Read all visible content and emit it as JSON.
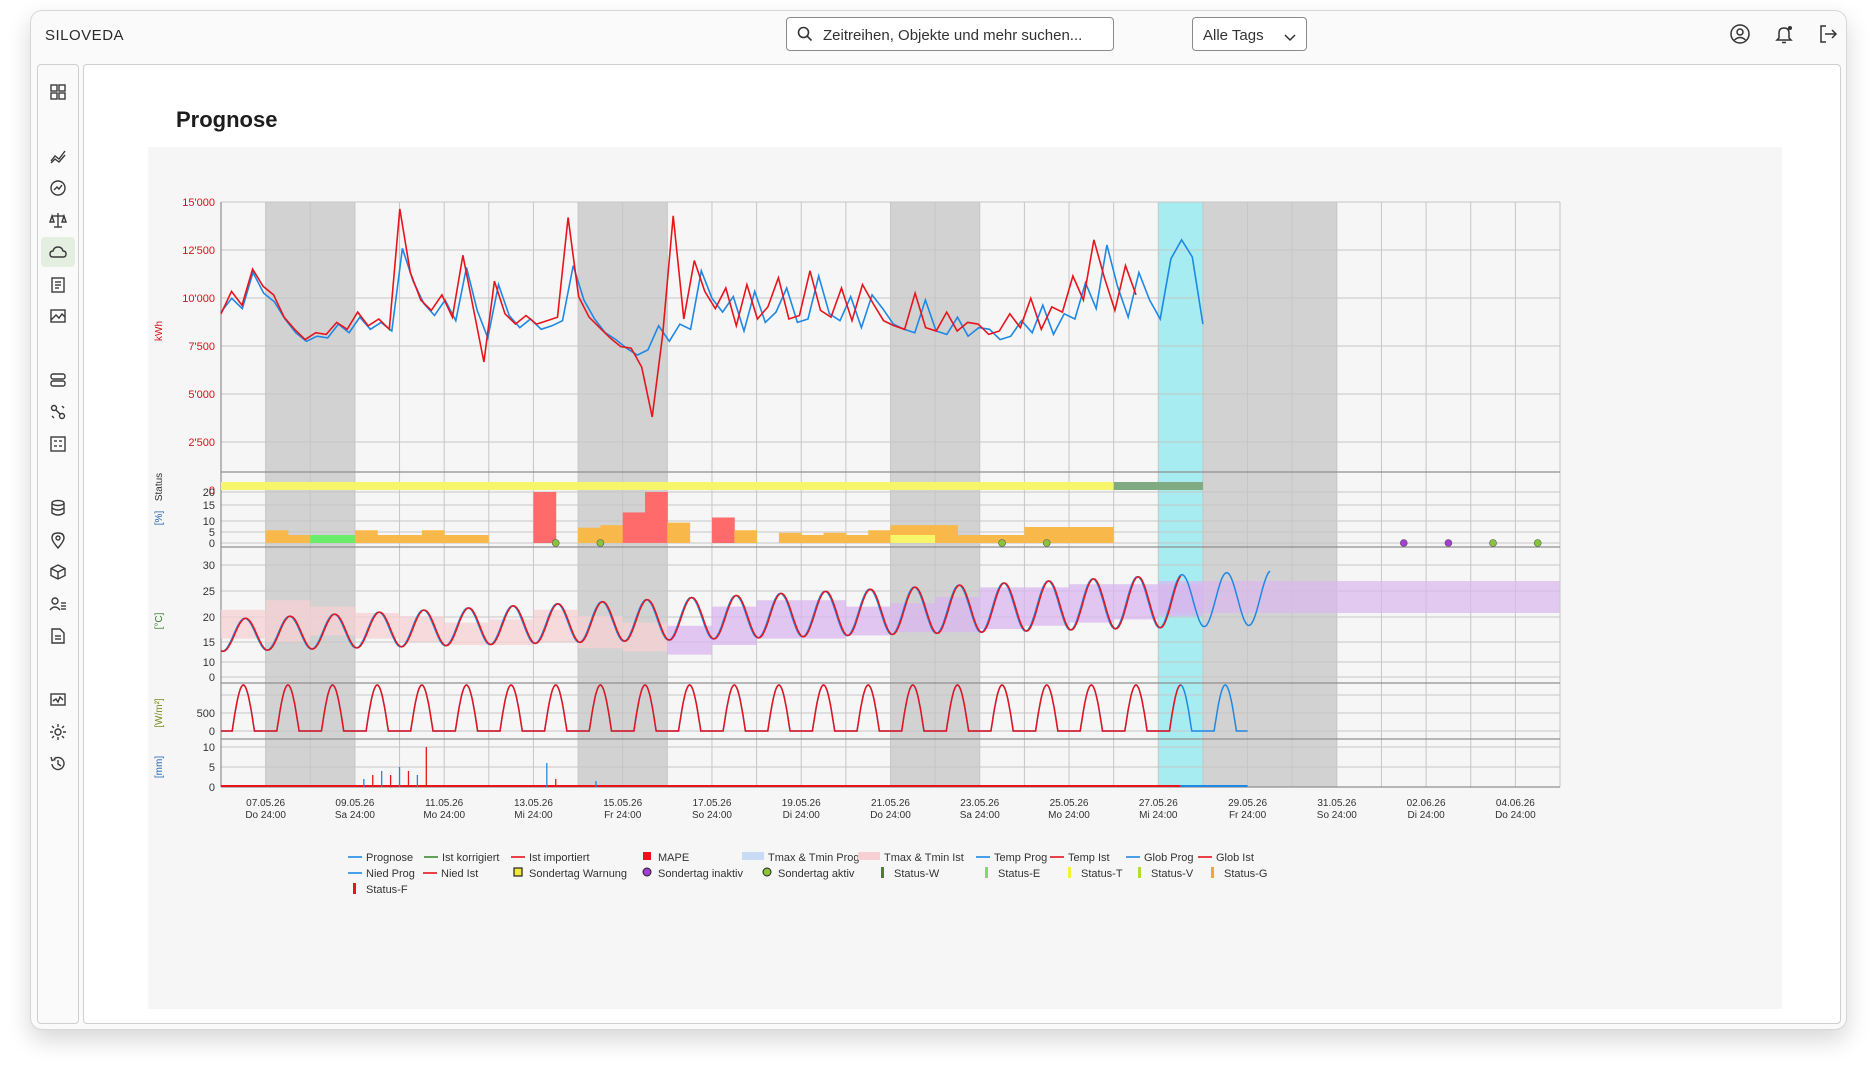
{
  "app": {
    "brand": "SILOVEDA"
  },
  "search": {
    "placeholder": "Zeitreihen, Objekte und mehr suchen..."
  },
  "tags": {
    "selected": "Alle Tags"
  },
  "page": {
    "title": "Prognose"
  },
  "sidebar": {
    "active_index": 4,
    "items": [
      "dashboard-icon",
      "analytics-icon",
      "gauge-icon",
      "balance-icon",
      "cloud-icon",
      "clipboard-icon",
      "landscape-icon",
      "stack-icon",
      "flow-icon",
      "calculator-icon",
      "database-icon",
      "location-icon",
      "cube-icon",
      "users-icon",
      "document-icon",
      "monitor-icon",
      "settings-icon",
      "history-icon"
    ]
  },
  "topbar_icons": [
    "user-icon",
    "bell-icon",
    "logout-icon"
  ],
  "colors": {
    "prognose": "#1e88e5",
    "ist": "#e8141c",
    "mape": "#ff6b6b",
    "weekend": "#d2d2d2",
    "today": "#a7ecf1",
    "status_yellow": "#f7f56a",
    "status_green": "#7faa82",
    "orange": "#f8b94a",
    "green_bar": "#69ec69",
    "tband_prog": "#c9dcf6",
    "tband_ist": "#f6d0d3",
    "purple": "#d8b6ee"
  },
  "chart_data": {
    "type": "line",
    "x_ticks": [
      {
        "date": "07.05.26",
        "day": "Do 24:00"
      },
      {
        "date": "09.05.26",
        "day": "Sa 24:00"
      },
      {
        "date": "11.05.26",
        "day": "Mo 24:00"
      },
      {
        "date": "13.05.26",
        "day": "Mi 24:00"
      },
      {
        "date": "15.05.26",
        "day": "Fr 24:00"
      },
      {
        "date": "17.05.26",
        "day": "So 24:00"
      },
      {
        "date": "19.05.26",
        "day": "Di 24:00"
      },
      {
        "date": "21.05.26",
        "day": "Do 24:00"
      },
      {
        "date": "23.05.26",
        "day": "Sa 24:00"
      },
      {
        "date": "25.05.26",
        "day": "Mo 24:00"
      },
      {
        "date": "27.05.26",
        "day": "Mi 24:00"
      },
      {
        "date": "29.05.26",
        "day": "Fr 24:00"
      },
      {
        "date": "31.05.26",
        "day": "So 24:00"
      },
      {
        "date": "02.06.26",
        "day": "Di 24:00"
      },
      {
        "date": "04.06.26",
        "day": "Do 24:00"
      }
    ],
    "weekend_day_ranges": [
      [
        1,
        3
      ],
      [
        8,
        10
      ],
      [
        15,
        17
      ],
      [
        22,
        24
      ]
    ],
    "today_day_range": [
      21,
      22
    ],
    "panels": [
      {
        "name": "energy",
        "ylabel": "kWh",
        "ticks": [
          "15'000",
          "12'500",
          "10'000",
          "7'500",
          "5'000",
          "2'500",
          "0"
        ],
        "ylim": [
          0,
          15000
        ],
        "series": [
          {
            "name": "Prognose",
            "values": [
              8600,
              9400,
              8800,
              10900,
              9700,
              9200,
              8200,
              7400,
              6900,
              7200,
              7100,
              7900,
              7400,
              8300,
              7600,
              8000,
              7500,
              12300,
              10400,
              9100,
              8400,
              9300,
              8100,
              11200,
              8700,
              7100,
              10200,
              8400,
              7700,
              8200,
              7600,
              7800,
              8100,
              11300,
              9300,
              8200,
              7400,
              7000,
              6500,
              6100,
              6400,
              7800,
              6900,
              7900,
              7600,
              11000,
              9400,
              8600,
              9500,
              7500,
              9800,
              8000,
              8600,
              10000,
              8000,
              8200,
              10700,
              8500,
              8100,
              9500,
              7700,
              9600,
              8800,
              7900,
              7600,
              7400,
              9300,
              7500,
              7300,
              8300,
              7200,
              7700,
              7600,
              7000,
              7200,
              8100,
              7400,
              9000,
              7300,
              8500,
              8200,
              10300,
              8800,
              12500,
              10100,
              8300,
              10900,
              9300,
              8200,
              11700,
              12800,
              11800,
              7900
            ]
          },
          {
            "name": "Ist importiert",
            "values": [
              8500,
              9800,
              9000,
              11100,
              10100,
              9600,
              8300,
              7600,
              7000,
              7400,
              7300,
              8000,
              7600,
              8600,
              7800,
              8200,
              7600,
              14600,
              10900,
              9300,
              8700,
              9600,
              8300,
              11900,
              8800,
              5700,
              10400,
              8500,
              7900,
              8400,
              7900,
              8100,
              8300,
              14100,
              9500,
              8300,
              7700,
              7100,
              6600,
              6500,
              5400,
              2500,
              7300,
              14200,
              8200,
              11600,
              9800,
              8800,
              10000,
              7800,
              10200,
              8200,
              8900,
              10600,
              8200,
              8400,
              11000,
              8700,
              8300,
              10000,
              8100,
              10200,
              9100,
              8100,
              7800,
              7600,
              9700,
              7700,
              7500,
              8600,
              7500,
              8000,
              7900,
              7300,
              7500,
              8500,
              7700,
              9400,
              7600,
              8900,
              8600,
              10700,
              9300,
              12800,
              10600,
              8700,
              11300,
              9600
            ]
          }
        ]
      },
      {
        "name": "status",
        "ylabel": "Status"
      },
      {
        "name": "mape",
        "ylabel": "[%]",
        "ticks": [
          "20",
          "15",
          "10",
          "5",
          "0"
        ],
        "ylim": [
          0,
          20
        ],
        "bars": [
          0,
          5,
          0,
          0,
          0,
          5,
          0,
          0,
          5,
          0,
          0,
          0,
          0,
          20,
          0,
          6,
          7,
          12,
          20,
          8,
          0,
          10,
          5,
          0,
          4,
          0,
          4,
          0,
          5,
          7,
          7,
          7,
          0,
          0,
          0,
          0
        ]
      },
      {
        "name": "temperature",
        "ylabel": "[°C]",
        "ticks": [
          "30",
          "25",
          "20",
          "15",
          "10",
          "0"
        ],
        "ylim": [
          0,
          35
        ],
        "tmax": [
          21,
          24,
          22,
          20,
          19,
          17,
          18,
          21,
          19,
          17,
          16,
          22,
          24,
          24,
          22,
          23,
          25,
          28,
          28,
          29,
          29,
          29
        ],
        "tmin": [
          12,
          11,
          13,
          12,
          11,
          10,
          10,
          11,
          9,
          8,
          7,
          10,
          12,
          12,
          13,
          14,
          14,
          15,
          16,
          17,
          18,
          19
        ]
      },
      {
        "name": "radiation",
        "ylabel": "[W/m²]",
        "ticks": [
          "500",
          "0"
        ],
        "ylim": [
          0,
          1000
        ]
      },
      {
        "name": "precipitation",
        "ylabel": "[mm]",
        "ticks": [
          "10",
          "5",
          "0"
        ],
        "ylim": [
          0,
          10
        ]
      }
    ],
    "legend": [
      {
        "label": "Prognose",
        "kind": "line",
        "color": "#1e88e5"
      },
      {
        "label": "Ist korrigiert",
        "kind": "line",
        "color": "#3b8b2f"
      },
      {
        "label": "Ist importiert",
        "kind": "line",
        "color": "#e8141c"
      },
      {
        "label": "MAPE",
        "kind": "square",
        "color": "#e8141c"
      },
      {
        "label": "Tmax & Tmin Prog",
        "kind": "band",
        "color": "#c9dcf6"
      },
      {
        "label": "Tmax & Tmin Ist",
        "kind": "band",
        "color": "#f6d0d3"
      },
      {
        "label": "Temp Prog",
        "kind": "line",
        "color": "#1e88e5"
      },
      {
        "label": "Temp Ist",
        "kind": "line",
        "color": "#e8141c"
      },
      {
        "label": "Glob Prog",
        "kind": "line",
        "color": "#1e88e5"
      },
      {
        "label": "Glob Ist",
        "kind": "line",
        "color": "#e8141c"
      },
      {
        "label": "Nied Prog",
        "kind": "line",
        "color": "#1e88e5"
      },
      {
        "label": "Nied Ist",
        "kind": "line",
        "color": "#e8141c"
      },
      {
        "label": "Sondertag Warnung",
        "kind": "square-outline",
        "color": "#f5e63a"
      },
      {
        "label": "Sondertag  inaktiv",
        "kind": "dot",
        "color": "#a23fd0"
      },
      {
        "label": "Sondertag  aktiv",
        "kind": "dot",
        "color": "#8ac43a"
      },
      {
        "label": "Status-W",
        "kind": "bar",
        "color": "#4f7f2a"
      },
      {
        "label": "Status-E",
        "kind": "bar",
        "color": "#7ddc6a"
      },
      {
        "label": "Status-T",
        "kind": "bar",
        "color": "#f5f03a"
      },
      {
        "label": "Status-V",
        "kind": "bar",
        "color": "#b2dd35"
      },
      {
        "label": "Status-G",
        "kind": "bar",
        "color": "#f8a23a"
      },
      {
        "label": "Status-F",
        "kind": "bar",
        "color": "#e8141c"
      }
    ]
  }
}
